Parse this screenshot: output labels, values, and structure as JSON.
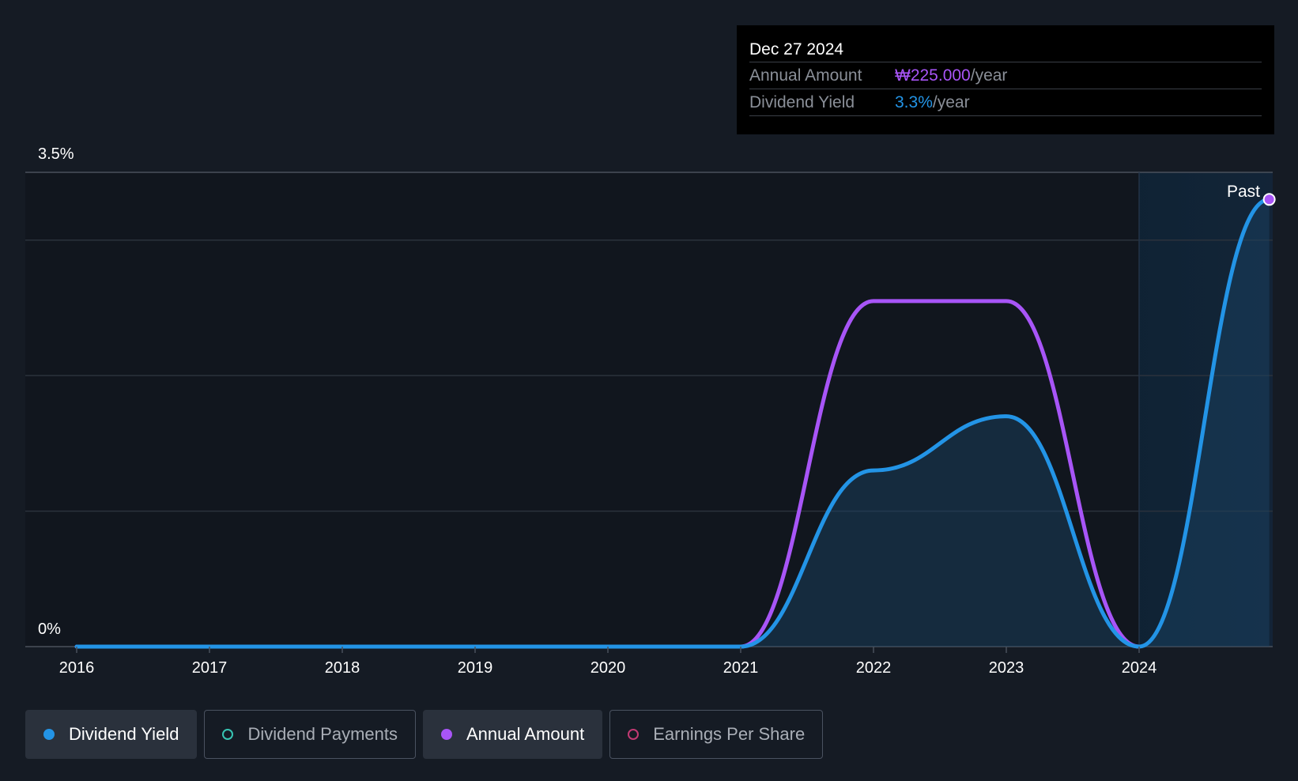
{
  "chart_data": {
    "type": "area",
    "ylim": [
      0,
      3.5
    ],
    "y_tick_labels": {
      "top": "3.5%",
      "bottom": "0%"
    },
    "x_tick_labels": [
      "2016",
      "2017",
      "2018",
      "2019",
      "2020",
      "2021",
      "2022",
      "2023",
      "2024"
    ],
    "past_label": "Past",
    "series": [
      {
        "name": "Dividend Yield",
        "color": "#2394e6",
        "unit": "%",
        "points": [
          [
            2016,
            0
          ],
          [
            2017,
            0
          ],
          [
            2018,
            0
          ],
          [
            2019,
            0
          ],
          [
            2020,
            0
          ],
          [
            2021,
            0
          ],
          [
            2022,
            1.3
          ],
          [
            2023,
            1.7
          ],
          [
            2024,
            0
          ],
          [
            2024.98,
            3.3
          ]
        ]
      },
      {
        "name": "Annual Amount",
        "color": "#a855f7",
        "unit": "₩/year",
        "points": [
          [
            2016,
            0
          ],
          [
            2017,
            0
          ],
          [
            2018,
            0
          ],
          [
            2019,
            0
          ],
          [
            2020,
            0
          ],
          [
            2021,
            0
          ],
          [
            2022,
            2.55
          ],
          [
            2023,
            2.55
          ],
          [
            2024,
            0
          ]
        ]
      }
    ]
  },
  "tooltip": {
    "date": "Dec 27 2024",
    "rows": [
      {
        "label": "Annual Amount",
        "value": "₩225.000",
        "unit": "/year"
      },
      {
        "label": "Dividend Yield",
        "value": "3.3%",
        "unit": "/year"
      }
    ]
  },
  "legend": [
    {
      "label": "Dividend Yield",
      "color": "#2394e6",
      "active": true,
      "filled": true
    },
    {
      "label": "Dividend Payments",
      "color": "#37c5b3",
      "active": false,
      "filled": false
    },
    {
      "label": "Annual Amount",
      "color": "#a855f7",
      "active": true,
      "filled": true
    },
    {
      "label": "Earnings Per Share",
      "color": "#c23a73",
      "active": false,
      "filled": false
    }
  ]
}
